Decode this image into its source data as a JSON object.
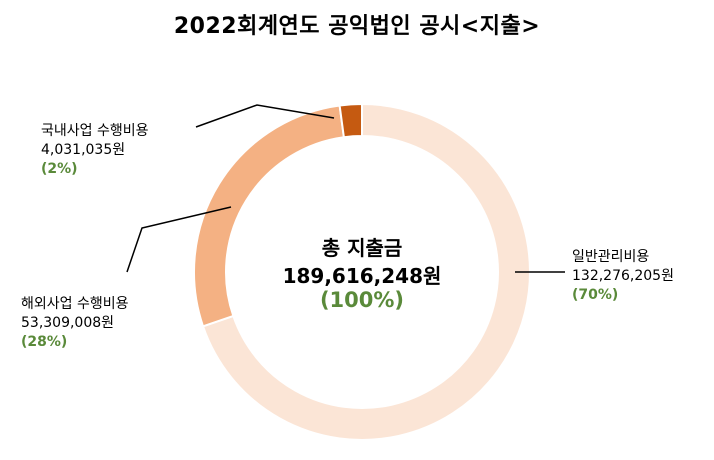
{
  "chart_data": {
    "type": "pie",
    "title": "2022회계연도 공익법인 공시<지출>",
    "center": {
      "label": "총 지출금",
      "value": "189,616,248원",
      "percent": "(100%)"
    },
    "slices": [
      {
        "name": "일반관리비용",
        "value": 132276205,
        "value_label": "132,276,205원",
        "percent_label": "(70%)",
        "color": "#fbe5d6"
      },
      {
        "name": "해외사업 수행비용",
        "value": 53309008,
        "value_label": "53,309,008원",
        "percent_label": "(28%)",
        "color": "#f4b183"
      },
      {
        "name": "국내사업 수행비용",
        "value": 4031035,
        "value_label": "4,031,035원",
        "percent_label": "(2%)",
        "color": "#c55a11"
      }
    ],
    "style": "donut"
  }
}
